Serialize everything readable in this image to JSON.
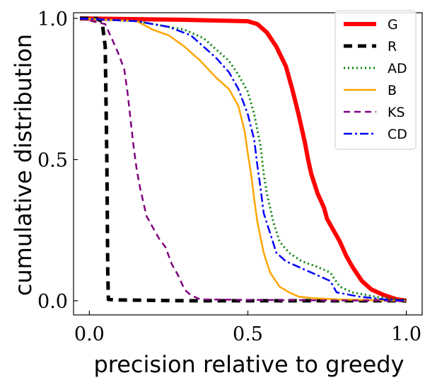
{
  "chart_data": {
    "type": "line",
    "title": "",
    "xlabel": "precision relative to greedy",
    "ylabel": "cumulative distribution",
    "xlim": [
      -0.05,
      1.05
    ],
    "ylim": [
      -0.05,
      1.02
    ],
    "xticks": [
      {
        "value": 0.0,
        "label": "0.0"
      },
      {
        "value": 0.5,
        "label": "0.5"
      },
      {
        "value": 1.0,
        "label": "1.0"
      }
    ],
    "yticks": [
      {
        "value": 0.0,
        "label": "0.0"
      },
      {
        "value": 0.5,
        "label": "0.5"
      },
      {
        "value": 1.0,
        "label": "1.0"
      }
    ],
    "grid": false,
    "legend_position": "top-right",
    "series": [
      {
        "name": "G",
        "color": "#ff0000",
        "dash": "solid",
        "width": 6,
        "x": [
          -0.03,
          0.3,
          0.5,
          0.53,
          0.56,
          0.59,
          0.62,
          0.64,
          0.66,
          0.68,
          0.69,
          0.7,
          0.72,
          0.74,
          0.75,
          0.77,
          0.79,
          0.81,
          0.83,
          0.86,
          0.89,
          0.93,
          0.97,
          1.0
        ],
        "y": [
          1.0,
          0.995,
          0.99,
          0.98,
          0.95,
          0.9,
          0.83,
          0.75,
          0.66,
          0.56,
          0.5,
          0.45,
          0.38,
          0.33,
          0.29,
          0.25,
          0.21,
          0.16,
          0.12,
          0.07,
          0.04,
          0.02,
          0.005,
          0.0
        ]
      },
      {
        "name": "R",
        "color": "#000000",
        "dash": "12,8",
        "width": 5,
        "x": [
          -0.03,
          0.02,
          0.04,
          0.05,
          0.055,
          0.058,
          0.06,
          0.08,
          0.3,
          0.6,
          1.0
        ],
        "y": [
          1.0,
          1.0,
          0.99,
          0.9,
          0.5,
          0.1,
          0.005,
          0.003,
          0.0,
          0.0,
          0.0
        ]
      },
      {
        "name": "AD",
        "color": "#008000",
        "dash": "2,4",
        "width": 3,
        "x": [
          -0.03,
          0.15,
          0.3,
          0.36,
          0.4,
          0.44,
          0.47,
          0.5,
          0.52,
          0.54,
          0.55,
          0.56,
          0.58,
          0.6,
          0.63,
          0.67,
          0.72,
          0.76,
          0.79,
          0.83,
          0.9,
          0.97,
          1.0
        ],
        "y": [
          1.0,
          0.99,
          0.96,
          0.93,
          0.89,
          0.85,
          0.8,
          0.74,
          0.66,
          0.55,
          0.45,
          0.38,
          0.28,
          0.21,
          0.17,
          0.14,
          0.12,
          0.1,
          0.05,
          0.03,
          0.015,
          0.005,
          0.0
        ]
      },
      {
        "name": "B",
        "color": "#ffa500",
        "dash": "solid",
        "width": 2.5,
        "x": [
          -0.03,
          0.15,
          0.2,
          0.25,
          0.3,
          0.35,
          0.4,
          0.44,
          0.47,
          0.49,
          0.5,
          0.51,
          0.52,
          0.53,
          0.55,
          0.57,
          0.6,
          0.63,
          0.66,
          0.7,
          0.78,
          0.9,
          1.0
        ],
        "y": [
          1.0,
          0.99,
          0.96,
          0.94,
          0.9,
          0.85,
          0.79,
          0.75,
          0.69,
          0.6,
          0.52,
          0.45,
          0.36,
          0.28,
          0.17,
          0.1,
          0.05,
          0.03,
          0.015,
          0.01,
          0.005,
          0.002,
          0.0
        ]
      },
      {
        "name": "KS",
        "color": "#800080",
        "dash": "9,6",
        "width": 2.5,
        "x": [
          -0.03,
          0.05,
          0.07,
          0.09,
          0.11,
          0.12,
          0.13,
          0.14,
          0.15,
          0.16,
          0.18,
          0.2,
          0.22,
          0.24,
          0.26,
          0.28,
          0.3,
          0.32,
          0.35,
          0.5,
          0.8,
          1.0
        ],
        "y": [
          1.0,
          0.98,
          0.93,
          0.88,
          0.82,
          0.74,
          0.64,
          0.54,
          0.46,
          0.4,
          0.3,
          0.26,
          0.22,
          0.19,
          0.13,
          0.09,
          0.04,
          0.02,
          0.005,
          0.003,
          0.001,
          0.0
        ]
      },
      {
        "name": "CD",
        "color": "#0000ff",
        "dash": "12,4,3,4",
        "width": 2.5,
        "x": [
          -0.03,
          0.15,
          0.25,
          0.32,
          0.36,
          0.4,
          0.44,
          0.47,
          0.5,
          0.52,
          0.53,
          0.54,
          0.55,
          0.57,
          0.59,
          0.62,
          0.66,
          0.72,
          0.76,
          0.78,
          0.85,
          0.93,
          1.0
        ],
        "y": [
          1.0,
          0.99,
          0.97,
          0.94,
          0.9,
          0.86,
          0.81,
          0.75,
          0.66,
          0.57,
          0.48,
          0.4,
          0.31,
          0.24,
          0.17,
          0.14,
          0.12,
          0.09,
          0.07,
          0.03,
          0.015,
          0.005,
          0.0
        ]
      }
    ]
  }
}
